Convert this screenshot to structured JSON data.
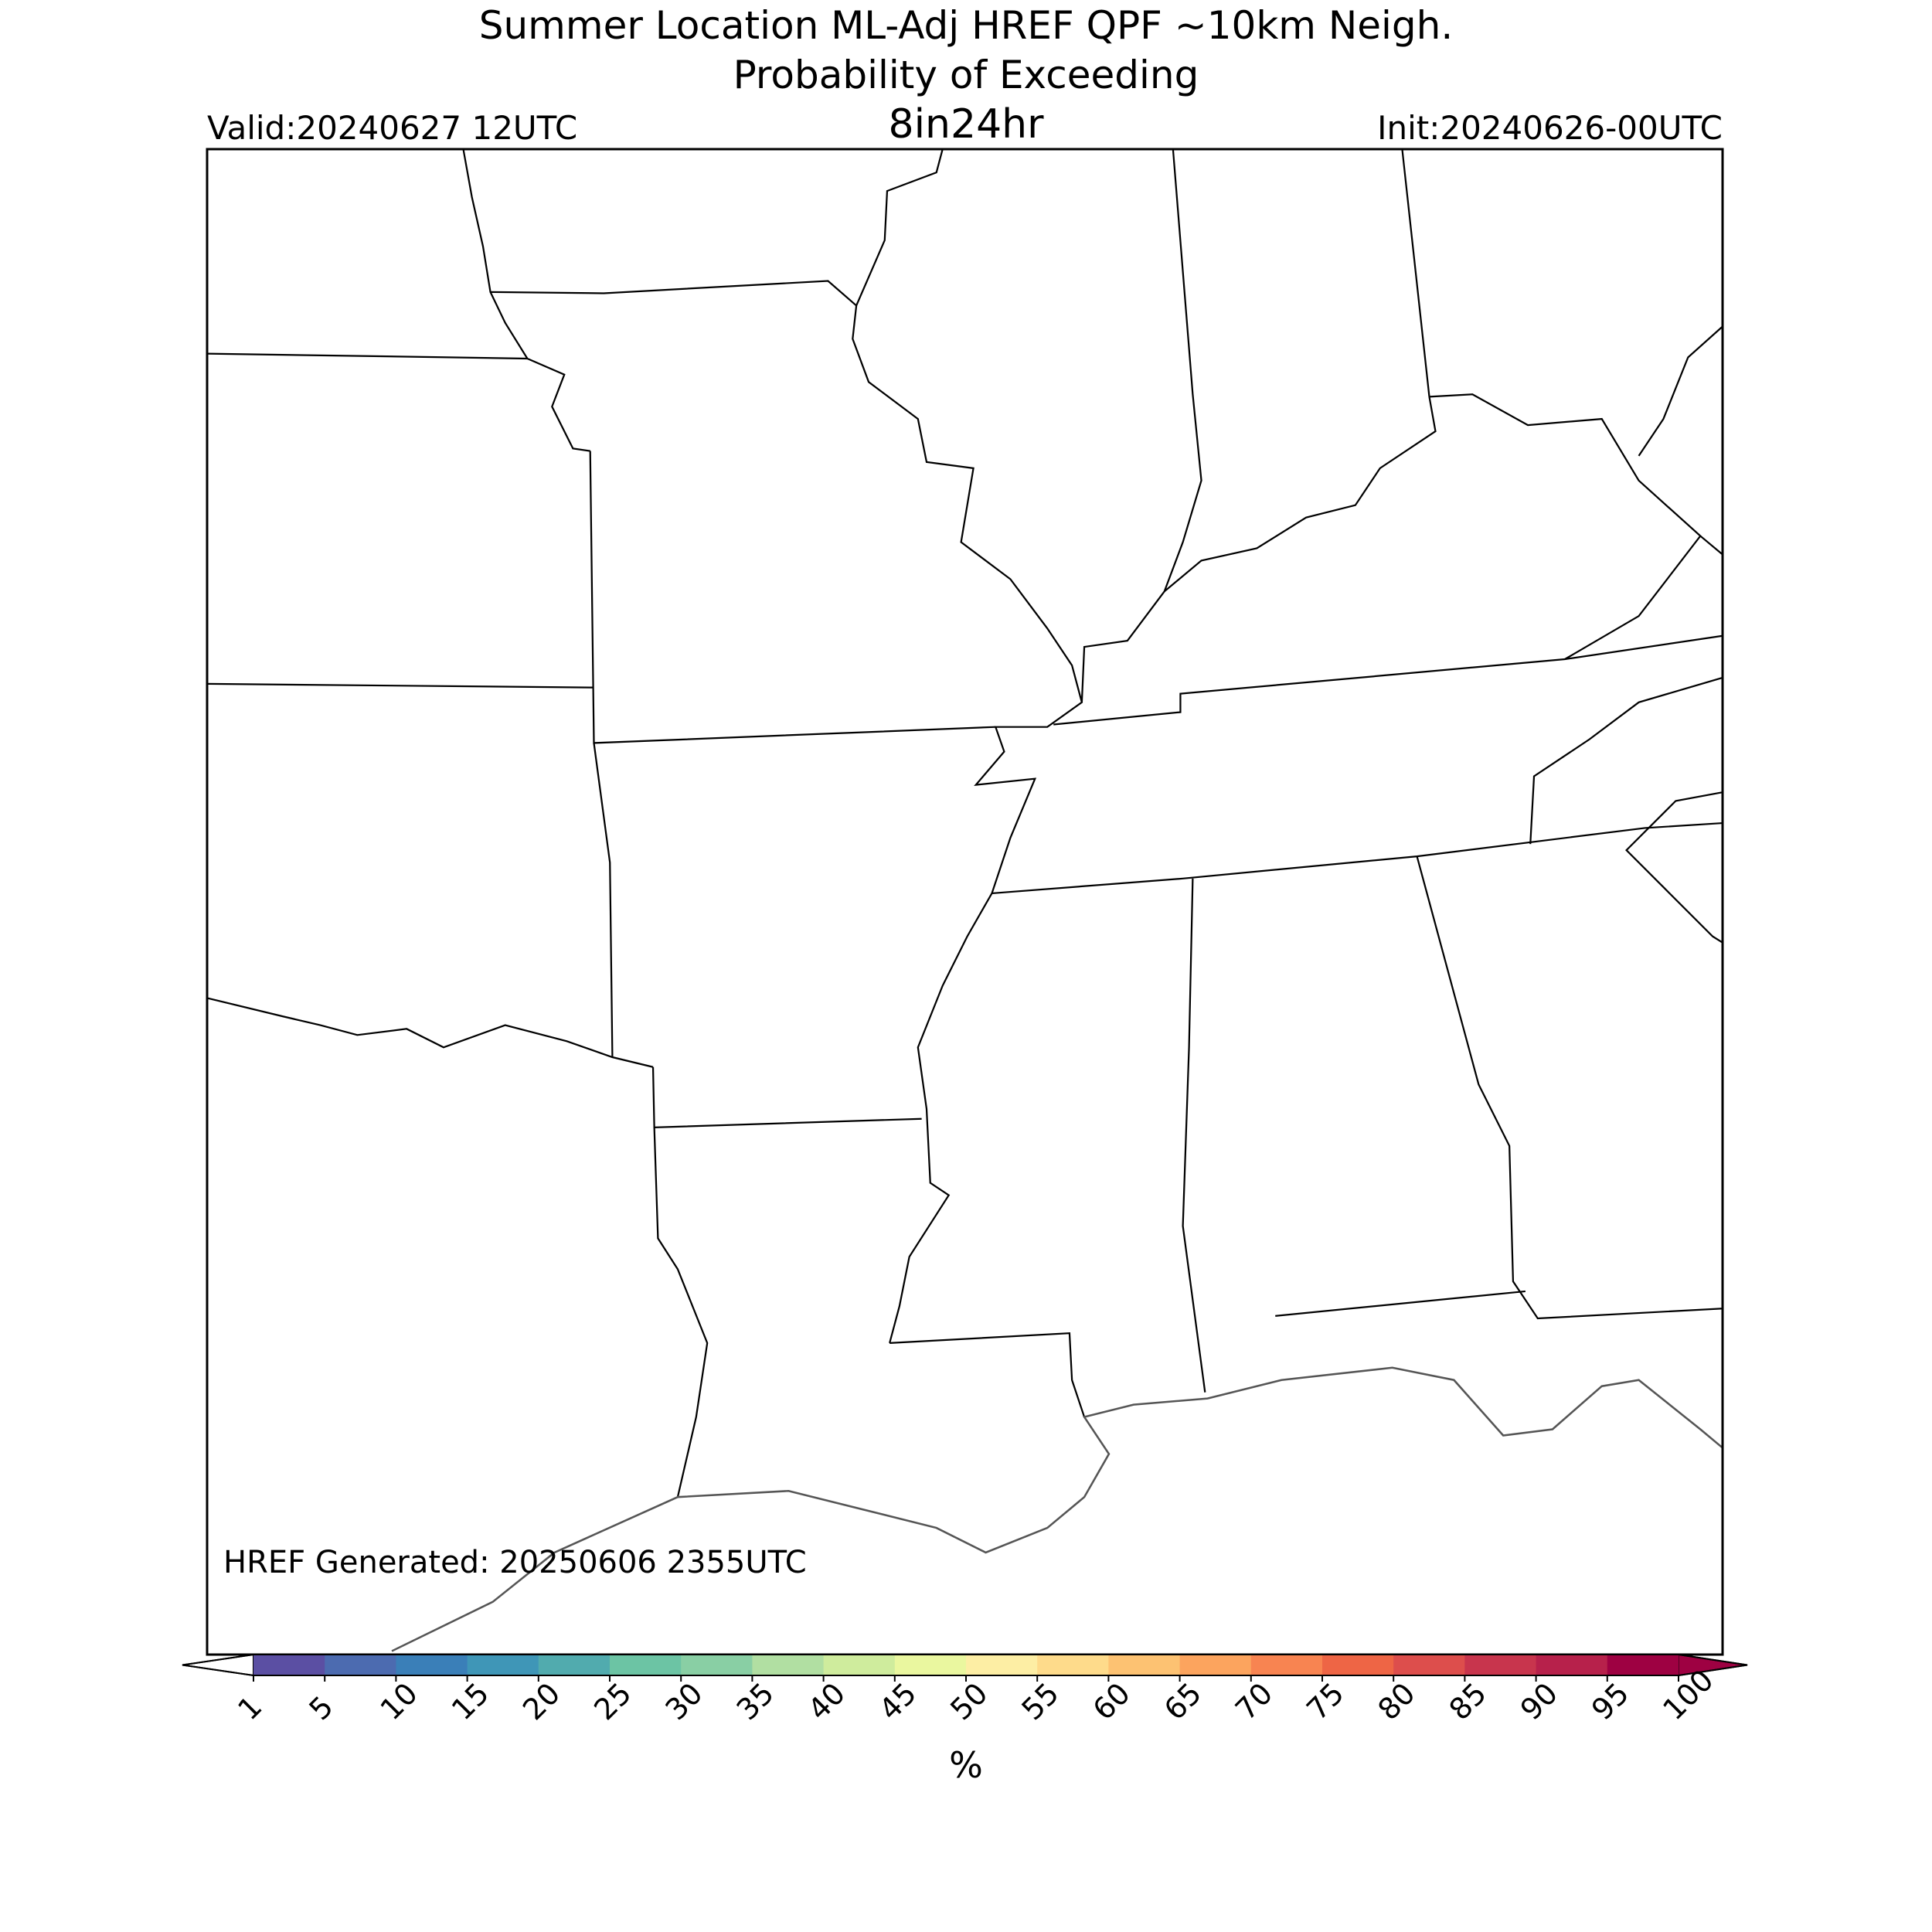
{
  "title": [
    "Summer Location ML-Adj HREF QPF ~10km Neigh.",
    "Probability of Exceeding"
  ],
  "threshold": "8in24hr",
  "valid": "Valid:20240627 12UTC",
  "init": "Init:20240626-00UTC",
  "generated": "HREF Generated: 20250606 2355UTC",
  "colorbar": {
    "ticks": [
      1,
      5,
      10,
      15,
      20,
      25,
      30,
      35,
      40,
      45,
      50,
      55,
      60,
      65,
      70,
      75,
      80,
      85,
      90,
      95,
      100
    ],
    "colors": [
      "#5b4fa3",
      "#4c6bb0",
      "#3a7fb8",
      "#3f96b7",
      "#51abae",
      "#6cc4a4",
      "#89cfa4",
      "#b1dfa2",
      "#cfec9d",
      "#eaf79f",
      "#fdeea4",
      "#fedb8b",
      "#fdc272",
      "#fca45e",
      "#f88451",
      "#ee6545",
      "#dd4e4c",
      "#c8354d",
      "#b7214b",
      "#9e0142"
    ],
    "under_color": "#ffffff",
    "over_color": "#9e0142",
    "label": "%"
  }
}
